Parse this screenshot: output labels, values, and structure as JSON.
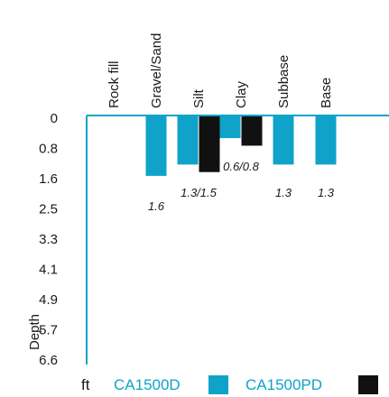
{
  "chart_data": {
    "type": "bar",
    "orientation": "vertical-downward",
    "categories": [
      "Rock fill",
      "Gravel/Sand",
      "Silt",
      "Clay",
      "Subbase",
      "Base"
    ],
    "series": [
      {
        "name": "CA1500D",
        "color": "#0fa3c9",
        "values": [
          0,
          1.6,
          1.3,
          0.6,
          1.3,
          1.3
        ]
      },
      {
        "name": "CA1500PD",
        "color": "#111111",
        "values": [
          null,
          null,
          1.5,
          0.8,
          null,
          null
        ]
      }
    ],
    "data_labels": [
      "",
      "1.6",
      "1.3/1.5",
      "0.6/0.8",
      "1.3",
      "1.3"
    ],
    "y_ticks": [
      "0",
      "0.8",
      "1.6",
      "2.5",
      "3.3",
      "4.1",
      "4.9",
      "5.7",
      "6.6"
    ],
    "ylim": [
      0,
      6.6
    ],
    "ylabel": "Depth",
    "unit": "ft",
    "axis_color": "#0fa3c9",
    "legend_placement": "bottom",
    "grid": false
  }
}
